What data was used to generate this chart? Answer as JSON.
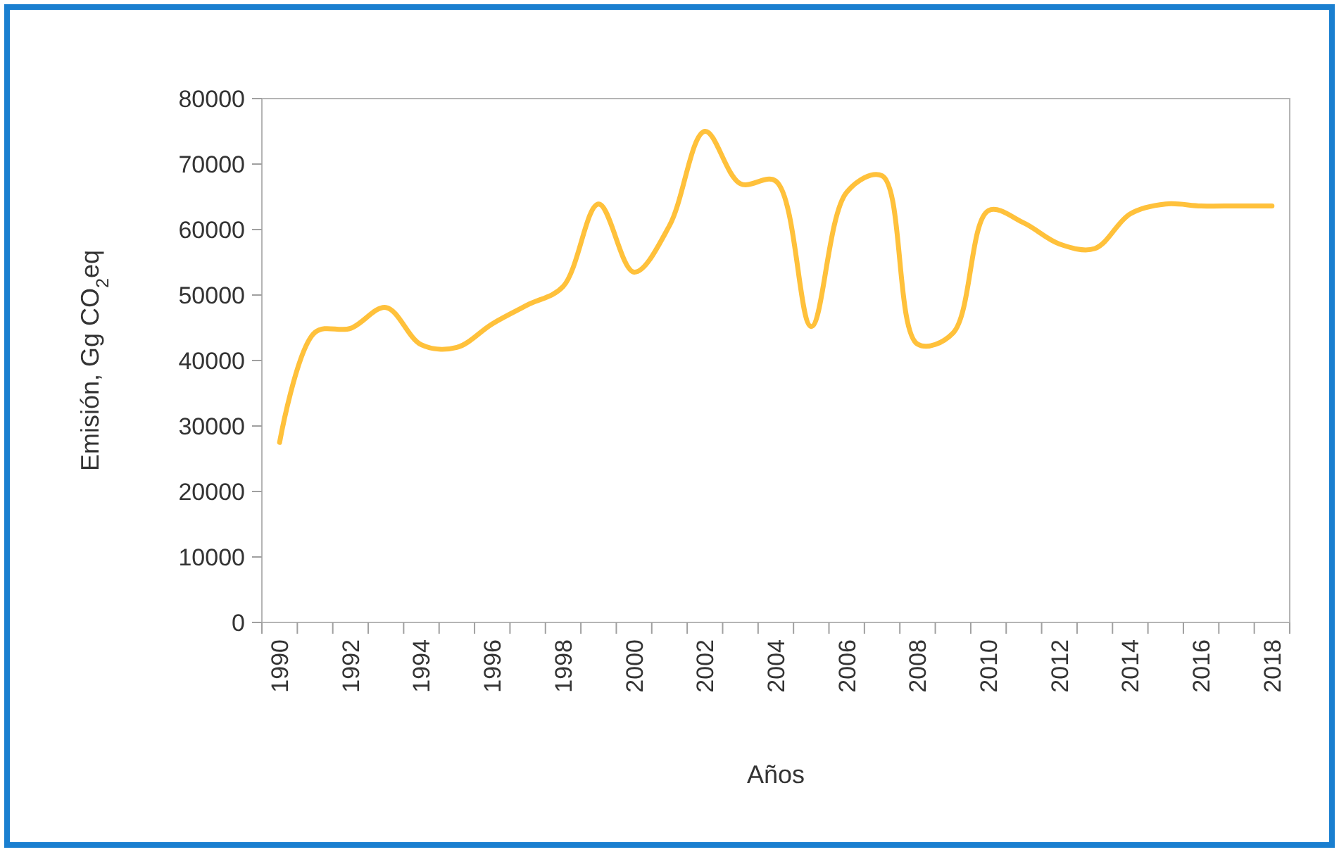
{
  "chart_data": {
    "type": "line",
    "xlabel": "Años",
    "ylabel": "Emisión, Gg CO$_{2}$eq",
    "categories": [
      "1990",
      null,
      "1992",
      null,
      "1994",
      null,
      "1996",
      null,
      "1998",
      null,
      "2000",
      null,
      "2002",
      null,
      "2004",
      null,
      "2006",
      null,
      "2008",
      null,
      "2010",
      null,
      "2012",
      null,
      "2014",
      null,
      "2016",
      null,
      "2018"
    ],
    "series": [
      {
        "color": "#ffc13b",
        "values": [
          27500,
          44300,
          44900,
          48100,
          42400,
          42000,
          45600,
          48500,
          51300,
          63900,
          53500,
          60600,
          75000,
          67000,
          67400,
          45200,
          65700,
          68200,
          42500,
          44200,
          62900,
          61000,
          57800,
          57100,
          62400,
          63900,
          63600,
          63600,
          63600
        ]
      }
    ],
    "ylim": [
      0,
      80000
    ],
    "yticks": [
      0,
      10000,
      20000,
      30000,
      40000,
      50000,
      60000,
      70000,
      80000
    ],
    "grid": false,
    "marker": "none",
    "line_style": "solid"
  }
}
